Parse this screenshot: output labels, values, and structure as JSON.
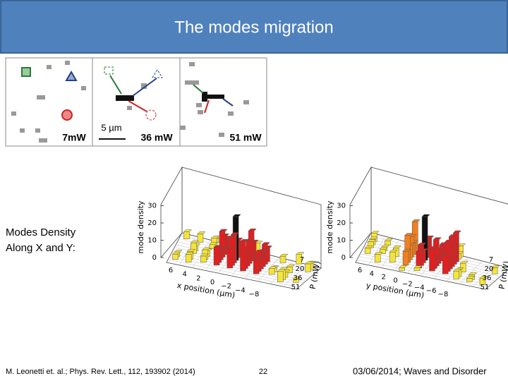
{
  "header": {
    "title": "The modes migration"
  },
  "microscopy": {
    "panels": [
      {
        "label": "7mW"
      },
      {
        "label": "36 mW"
      },
      {
        "label": "51 mW"
      }
    ],
    "scale_bar": "5 µm"
  },
  "side_text": [
    "Modes Density",
    "Along X and Y:"
  ],
  "plots": [
    {
      "z_label": "mode density",
      "z_ticks": [
        "0",
        "10",
        "20",
        "30"
      ],
      "x_label": "x position (µm)",
      "x_ticks": [
        "6",
        "4",
        "2",
        "0",
        "−2",
        "−4",
        "−8"
      ],
      "p_label": "P (mW)",
      "p_ticks": [
        "7",
        "20",
        "36",
        "51"
      ]
    },
    {
      "z_label": "mode density",
      "z_ticks": [
        "0",
        "10",
        "20",
        "30"
      ],
      "x_label": "y position (µm)",
      "x_ticks": [
        "6",
        "4",
        "2",
        "0",
        "−2",
        "−4",
        "−6",
        "−8"
      ],
      "p_label": "P (mW)",
      "p_ticks": [
        "7",
        "20",
        "36",
        "51"
      ]
    }
  ],
  "footer": {
    "citation": "M. Leonetti et. al.; Phys. Rev. Lett., 112, 193902 (2014)",
    "page": "22",
    "date_event": "03/06/2014; Waves and Disorder"
  }
}
